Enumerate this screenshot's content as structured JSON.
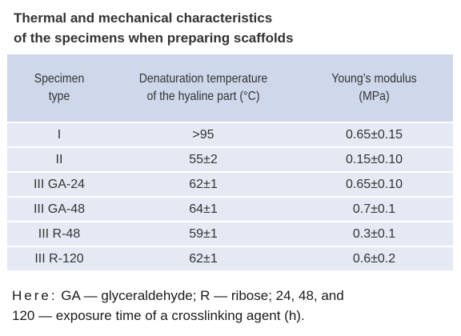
{
  "caption": {
    "line1": "Thermal and mechanical characteristics",
    "line2": "of the specimens when preparing scaffolds"
  },
  "table": {
    "headers": [
      [
        "Specimen",
        "type"
      ],
      [
        "Denaturation temperature",
        "of the hyaline part (°C)"
      ],
      [
        "Young’s modulus",
        "(MPa)"
      ]
    ],
    "rows": [
      [
        "I",
        ">95",
        "0.65±0.15"
      ],
      [
        "II",
        "55±2",
        "0.15±0.10"
      ],
      [
        "III GA-24",
        "62±1",
        "0.65±0.10"
      ],
      [
        "III GA-48",
        "64±1",
        "0.7±0.1"
      ],
      [
        "III R-48",
        "59±1",
        "0.3±0.1"
      ],
      [
        "III R-120",
        "62±1",
        "0.6±0.2"
      ]
    ]
  },
  "note": {
    "lead": "Here:",
    "line1_rest": " GA — glyceraldehyde; R — ribose; 24, 48, and",
    "line2": "120 — exposure time of a crosslinking agent (h)."
  },
  "colors": {
    "header_bg": "#cfd7eb",
    "row_bg": "#e4e9f4",
    "caption_text": "#333333"
  }
}
